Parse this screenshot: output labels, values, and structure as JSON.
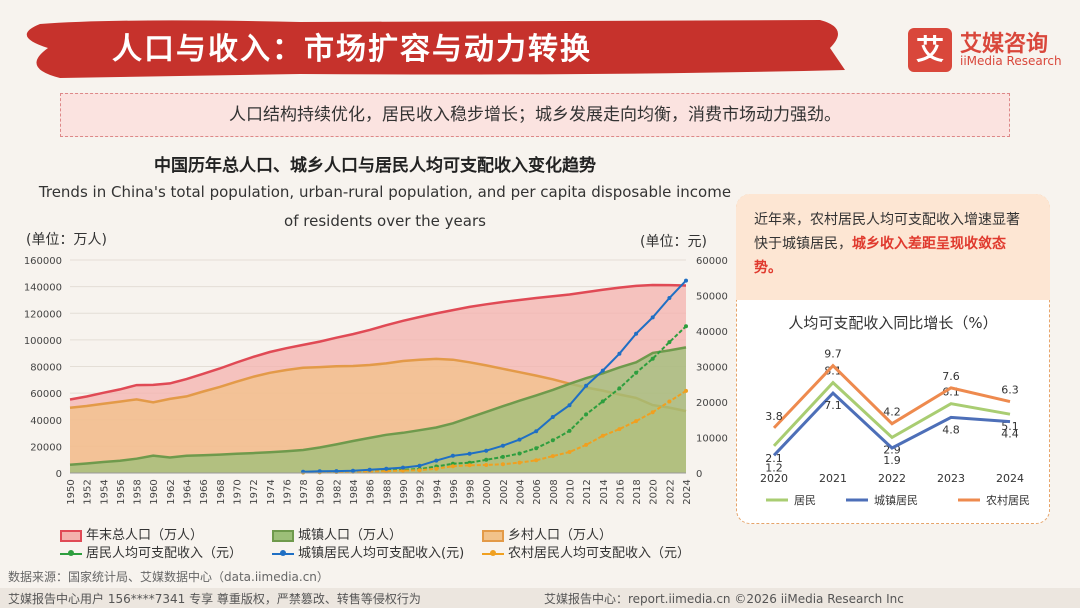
{
  "header": {
    "title": "人口与收入：市场扩容与动力转换",
    "logo_mark": "艾",
    "logo_cn": "艾媒咨询",
    "logo_en": "iiMedia Research"
  },
  "summary": "人口结构持续优化，居民收入稳步增长；城乡发展走向均衡，消费市场动力强劲。",
  "colors": {
    "banner": "#c6322c",
    "total_fill": "#f4b2ad",
    "total_line": "#e04a55",
    "urban_fill": "#9cbf78",
    "urban_line": "#6f9a4c",
    "rural_fill": "#f2c28a",
    "rural_line": "#e39a48",
    "resident_income": "#2e9e3e",
    "urban_income": "#1f6fc4",
    "rural_income": "#f0a020",
    "mini_resident": "#a9cd72",
    "mini_urban": "#4d6fb8",
    "mini_rural": "#ee8a4e"
  },
  "chart_data": [
    {
      "type": "area",
      "title": "中国历年总人口、城乡人口与居民人均可支配收入变化趋势",
      "subtitle": "Trends in China's total population, urban-rural population, and per capita disposable income of residents over the years",
      "y_left_label": "(单位：万人)",
      "y_right_label": "(单位：元)",
      "y_left_ticks": [
        "0",
        "20000",
        "40000",
        "60000",
        "80000",
        "100000",
        "120000",
        "140000",
        "160000"
      ],
      "y_right_ticks": [
        "0",
        "10000",
        "20000",
        "30000",
        "40000",
        "50000",
        "60000"
      ],
      "y_left_range": [
        0,
        160000
      ],
      "y_right_range": [
        0,
        60000
      ],
      "x": [
        1950,
        1952,
        1954,
        1956,
        1958,
        1960,
        1962,
        1964,
        1966,
        1968,
        1970,
        1972,
        1974,
        1976,
        1978,
        1980,
        1982,
        1984,
        1986,
        1988,
        1990,
        1992,
        1994,
        1996,
        1998,
        2000,
        2002,
        2004,
        2006,
        2008,
        2010,
        2012,
        2014,
        2016,
        2018,
        2020,
        2022,
        2024
      ],
      "x_labels": [
        "1950",
        "1952",
        "1954",
        "1956",
        "1958",
        "1960",
        "1962",
        "1964",
        "1966",
        "1968",
        "1970",
        "1972",
        "1974",
        "1976",
        "1978",
        "1980",
        "1982",
        "1984",
        "1986",
        "1988",
        "1990",
        "1992",
        "1994",
        "1996",
        "1998",
        "2000",
        "2002",
        "2004",
        "2006",
        "2008",
        "2010",
        "2012",
        "2014",
        "2016",
        "2018",
        "2020",
        "2022",
        "2024"
      ],
      "series": [
        {
          "name": "年末总人口（万人）",
          "kind": "area",
          "axis": "left",
          "color_key": "total",
          "values": [
            55196,
            57482,
            60266,
            62828,
            65994,
            66207,
            67295,
            70499,
            74542,
            78534,
            82992,
            87177,
            90859,
            93717,
            96259,
            98705,
            101654,
            104357,
            107507,
            111026,
            114333,
            117171,
            119850,
            122389,
            124761,
            126743,
            128453,
            129988,
            131448,
            132802,
            134091,
            135922,
            137646,
            139232,
            140541,
            141212,
            141175,
            140828
          ]
        },
        {
          "name": "城镇人口（万人）",
          "kind": "area",
          "axis": "left",
          "color_key": "urban",
          "values": [
            6169,
            7163,
            8249,
            9185,
            10721,
            13073,
            11659,
            12950,
            13313,
            13838,
            14424,
            14935,
            15595,
            16341,
            17245,
            19140,
            21480,
            24017,
            26366,
            28661,
            30195,
            32175,
            34169,
            37304,
            41608,
            45906,
            50212,
            54283,
            58288,
            62403,
            66978,
            71182,
            74916,
            79298,
            83137,
            90220,
            92071,
            94350
          ]
        },
        {
          "name": "乡村人口（万人）",
          "kind": "area",
          "axis": "left",
          "color_key": "rural",
          "values": [
            49027,
            50319,
            52017,
            53643,
            55273,
            53134,
            55636,
            57549,
            61229,
            64696,
            68568,
            72242,
            75264,
            77376,
            79014,
            79565,
            80174,
            80340,
            81141,
            82365,
            84138,
            84996,
            85681,
            85085,
            83153,
            80837,
            78241,
            75705,
            73160,
            70399,
            67113,
            64222,
            61866,
            58973,
            56401,
            50992,
            49104,
            46478
          ]
        },
        {
          "name": "居民人均可支配收入（元）",
          "kind": "line",
          "axis": "right",
          "color_key": "resident_income",
          "values": [
            null,
            null,
            null,
            null,
            null,
            null,
            null,
            null,
            null,
            null,
            null,
            null,
            null,
            null,
            171,
            247,
            349,
            475,
            587,
            747,
            904,
            1104,
            1818,
            2612,
            2889,
            3721,
            4532,
            5479,
            6978,
            9224,
            11872,
            16510,
            20167,
            23821,
            28228,
            32189,
            36883,
            41314
          ]
        },
        {
          "name": "城镇居民人均可支配收入(元)",
          "kind": "line",
          "axis": "right",
          "color_key": "urban_income",
          "values": [
            null,
            null,
            null,
            null,
            null,
            null,
            null,
            null,
            null,
            null,
            null,
            null,
            null,
            null,
            343,
            478,
            535,
            652,
            900,
            1180,
            1510,
            2027,
            3496,
            4839,
            5425,
            6280,
            7703,
            9422,
            11760,
            15781,
            19109,
            24565,
            28844,
            33616,
            39251,
            43834,
            49283,
            54188
          ]
        },
        {
          "name": "农村居民人均可支配收入（元）",
          "kind": "line",
          "axis": "right",
          "color_key": "rural_income",
          "values": [
            null,
            null,
            null,
            null,
            null,
            null,
            null,
            null,
            null,
            null,
            null,
            null,
            null,
            null,
            134,
            191,
            270,
            355,
            424,
            545,
            686,
            784,
            1221,
            1926,
            2162,
            2253,
            2476,
            2936,
            3587,
            4761,
            5919,
            7917,
            10489,
            12363,
            14617,
            17131,
            20133,
            23119
          ]
        }
      ]
    },
    {
      "type": "line",
      "title": "人均可支配收入同比增长（%）",
      "categories": [
        "2020",
        "2021",
        "2022",
        "2023",
        "2024"
      ],
      "ylim": [
        0,
        11
      ],
      "series": [
        {
          "name": "居民",
          "color_key": "mini_resident",
          "values": [
            2.1,
            8.1,
            2.9,
            6.1,
            5.1
          ]
        },
        {
          "name": "城镇居民",
          "color_key": "mini_urban",
          "values": [
            1.2,
            7.1,
            1.9,
            4.8,
            4.4
          ]
        },
        {
          "name": "农村居民",
          "color_key": "mini_rural",
          "values": [
            3.8,
            9.7,
            4.2,
            7.6,
            6.3
          ]
        }
      ]
    }
  ],
  "side_note": {
    "text": "近年来，农村居民人均可支配收入增速显著快于城镇居民，",
    "highlight": "城乡收入差距呈现收敛态势。"
  },
  "footer": {
    "source": "数据来源：国家统计局、艾媒数据中心（data.iimedia.cn）",
    "left": "艾媒报告中心用户 156****7341 专享 尊重版权，严禁篡改、转售等侵权行为",
    "right": "艾媒报告中心：report.iimedia.cn    ©2026  iiMedia Research  Inc"
  }
}
